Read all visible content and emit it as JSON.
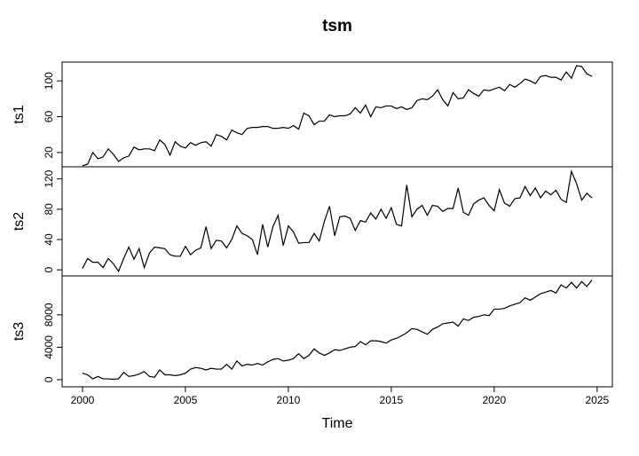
{
  "chart_data": {
    "type": "line",
    "title": "tsm",
    "x_label": "Time",
    "color": "#000000",
    "x": [
      2000,
      2000.25,
      2000.5,
      2000.75,
      2001,
      2001.25,
      2001.5,
      2001.75,
      2002,
      2002.25,
      2002.5,
      2002.75,
      2003,
      2003.25,
      2003.5,
      2003.75,
      2004,
      2004.25,
      2004.5,
      2004.75,
      2005,
      2005.25,
      2005.5,
      2005.75,
      2006,
      2006.25,
      2006.5,
      2006.75,
      2007,
      2007.25,
      2007.5,
      2007.75,
      2008,
      2008.25,
      2008.5,
      2008.75,
      2009,
      2009.25,
      2009.5,
      2009.75,
      2010,
      2010.25,
      2010.5,
      2010.75,
      2011,
      2011.25,
      2011.5,
      2011.75,
      2012,
      2012.25,
      2012.5,
      2012.75,
      2013,
      2013.25,
      2013.5,
      2013.75,
      2014,
      2014.25,
      2014.5,
      2014.75,
      2015,
      2015.25,
      2015.5,
      2015.75,
      2016,
      2016.25,
      2016.5,
      2016.75,
      2017,
      2017.25,
      2017.5,
      2017.75,
      2018,
      2018.25,
      2018.5,
      2018.75,
      2019,
      2019.25,
      2019.5,
      2019.75,
      2020,
      2020.25,
      2020.5,
      2020.75,
      2021,
      2021.25,
      2021.5,
      2021.75,
      2022,
      2022.25,
      2022.5,
      2022.75,
      2023,
      2023.25,
      2023.5,
      2023.75,
      2024,
      2024.25,
      2024.5,
      2024.75
    ],
    "xlim": [
      1999.01,
      2025.74
    ],
    "xticks": [
      2000,
      2005,
      2010,
      2015,
      2020,
      2025
    ],
    "series": [
      {
        "name": "ts1",
        "ylim": [
          4,
          121
        ],
        "yticks": [
          20,
          60,
          100
        ],
        "values": [
          5,
          7,
          20,
          13,
          15,
          24,
          18,
          10,
          14,
          16,
          26,
          23,
          24,
          24,
          22,
          34,
          29,
          17,
          32,
          27,
          25,
          31,
          28,
          31,
          32,
          27,
          40,
          38,
          34,
          45,
          42,
          40,
          47,
          48,
          48,
          49,
          49,
          47,
          47,
          48,
          47,
          50,
          46,
          64,
          61,
          51,
          55,
          55,
          62,
          60,
          61,
          61,
          63,
          70,
          64,
          73,
          60,
          71,
          70,
          72,
          72,
          69,
          71,
          68,
          70,
          78,
          80,
          79,
          83,
          90,
          79,
          72,
          87,
          80,
          81,
          90,
          86,
          83,
          90,
          89,
          91,
          93,
          89,
          96,
          93,
          97,
          102,
          100,
          97,
          105,
          106,
          104,
          104,
          101,
          110,
          103,
          117,
          116,
          108,
          105
        ]
      },
      {
        "name": "ts2",
        "ylim": [
          -8,
          136
        ],
        "yticks": [
          0,
          40,
          80,
          120
        ],
        "values": [
          2,
          15,
          10,
          10,
          3,
          15,
          8,
          -2,
          15,
          30,
          14,
          28,
          3,
          22,
          30,
          29,
          28,
          20,
          18,
          18,
          31,
          20,
          26,
          29,
          57,
          28,
          39,
          38,
          29,
          40,
          58,
          48,
          45,
          40,
          20,
          60,
          30,
          57,
          72,
          32,
          58,
          50,
          35,
          36,
          36,
          48,
          38,
          64,
          84,
          45,
          70,
          71,
          68,
          52,
          65,
          63,
          75,
          67,
          80,
          68,
          82,
          60,
          58,
          112,
          70,
          80,
          85,
          72,
          85,
          84,
          77,
          81,
          81,
          108,
          76,
          72,
          87,
          92,
          95,
          85,
          78,
          106,
          88,
          84,
          94,
          95,
          110,
          98,
          108,
          95,
          104,
          99,
          105,
          93,
          89,
          130,
          114,
          92,
          101,
          95
        ]
      },
      {
        "name": "ts3",
        "ylim": [
          -880,
          12800
        ],
        "yticks": [
          0,
          4000,
          8000
        ],
        "values": [
          800,
          600,
          100,
          400,
          100,
          100,
          50,
          100,
          900,
          400,
          500,
          700,
          1000,
          400,
          300,
          1200,
          600,
          600,
          500,
          600,
          800,
          1300,
          1500,
          1400,
          1200,
          1400,
          1300,
          1300,
          1900,
          1300,
          2300,
          1700,
          1900,
          1800,
          2000,
          1800,
          2200,
          2500,
          2600,
          2300,
          2400,
          2600,
          3200,
          2600,
          3000,
          3800,
          3300,
          3000,
          3300,
          3700,
          3600,
          3800,
          4000,
          4100,
          4700,
          4300,
          4800,
          4800,
          4700,
          4500,
          4900,
          5100,
          5400,
          5800,
          6300,
          6200,
          5900,
          5600,
          6200,
          6500,
          6900,
          7000,
          7100,
          6600,
          7500,
          7300,
          7700,
          7800,
          8000,
          7900,
          8700,
          8700,
          8800,
          9100,
          9300,
          9500,
          10100,
          9800,
          10200,
          10600,
          10800,
          11000,
          10700,
          11700,
          11300,
          12000,
          11300,
          12100,
          11500,
          12300
        ]
      }
    ]
  }
}
